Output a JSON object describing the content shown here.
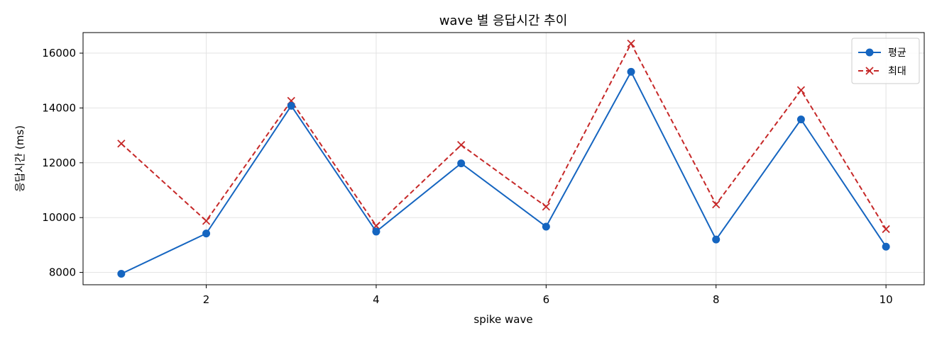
{
  "chart_data": {
    "type": "line",
    "title": "wave 별 응답시간 추이",
    "xlabel": "spike wave",
    "ylabel": "응답시간 (ms)",
    "x": [
      1,
      2,
      3,
      4,
      5,
      6,
      7,
      8,
      9,
      10
    ],
    "xlim": [
      0.55,
      10.45
    ],
    "ylim": [
      7550,
      16750
    ],
    "xticks": [
      2,
      4,
      6,
      8,
      10
    ],
    "yticks": [
      8000,
      10000,
      12000,
      14000,
      16000
    ],
    "grid": true,
    "legend_position": "top-right",
    "series": [
      {
        "name": "평균",
        "color": "#1565c0",
        "style": "solid",
        "marker": "circle",
        "values": [
          7950,
          9420,
          14080,
          9490,
          11980,
          9670,
          15320,
          9200,
          13580,
          8940
        ]
      },
      {
        "name": "최대",
        "color": "#c62828",
        "style": "dashed",
        "marker": "x",
        "values": [
          12700,
          9880,
          14260,
          9700,
          12650,
          10400,
          16350,
          10480,
          14650,
          9580
        ]
      }
    ]
  }
}
